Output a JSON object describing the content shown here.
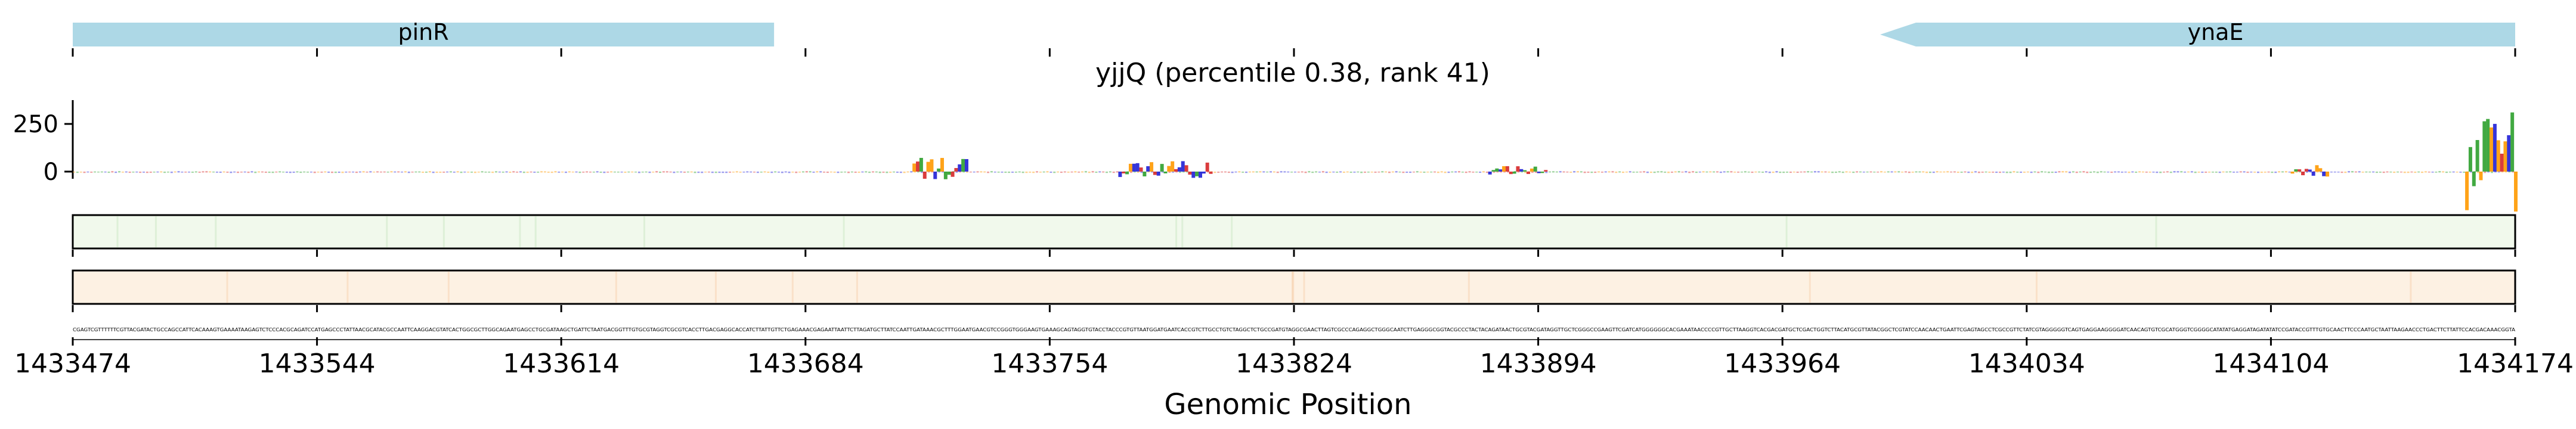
{
  "chart_data": {
    "type": "genome-track",
    "title": "yjjQ (percentile 0.38, rank 41)",
    "xlabel": "Genomic Position",
    "xlim": [
      1433474,
      1434174
    ],
    "x_ticks": [
      "1433474",
      "1433544",
      "1433614",
      "1433684",
      "1433754",
      "1433824",
      "1433894",
      "1433964",
      "1434034",
      "1434104",
      "1434174"
    ],
    "y_ticks": [
      "250",
      "0"
    ],
    "genes": [
      {
        "name": "pinR",
        "start": 1433474,
        "end": 1433675,
        "strand": "+"
      },
      {
        "name": "ynaE",
        "start": 1433992,
        "end": 1434174,
        "strand": "-"
      }
    ],
    "signal_regions": [
      {
        "start": 1433715,
        "end": 1433730,
        "approx_peak": 80
      },
      {
        "start": 1433774,
        "end": 1433800,
        "approx_peak": 60
      },
      {
        "start": 1433880,
        "end": 1433896,
        "approx_peak": 30
      },
      {
        "start": 1434110,
        "end": 1434120,
        "approx_peak": 45
      },
      {
        "start": 1434160,
        "end": 1434174,
        "approx_peak": 360
      }
    ],
    "colors": {
      "gene": "#add8e6",
      "track1_fill": "#f1f9ec",
      "track2_fill": "#fdf1e3",
      "base_A": "#2ca02c",
      "base_C": "#1f1fd6",
      "base_G": "#ff9900",
      "base_T": "#d62728"
    }
  }
}
